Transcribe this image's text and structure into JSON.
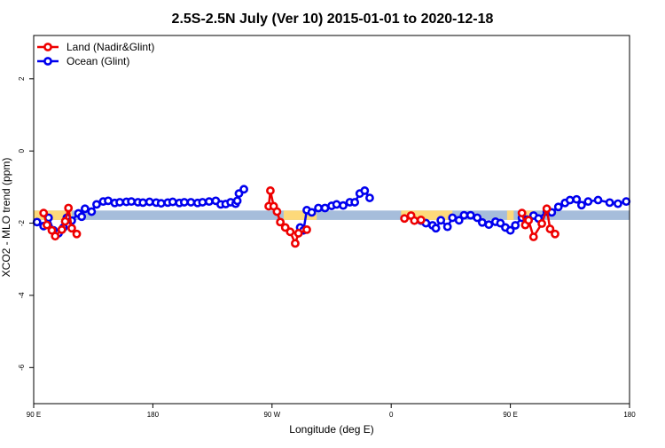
{
  "chart_data": {
    "type": "line",
    "title": "2.5S-2.5N July (Ver 10)   2015-01-01 to 2020-12-18",
    "xlabel": "Longitude (deg E)",
    "ylabel": "XCO2 - MLO trend (ppm)",
    "xlim": [
      90,
      450
    ],
    "ylim": [
      -7,
      3.2
    ],
    "x_ticks": [
      {
        "value": 90,
        "label": "90 E"
      },
      {
        "value": 162,
        "label": "180"
      },
      {
        "value": 234,
        "label": "90 W"
      },
      {
        "value": 306,
        "label": "0"
      },
      {
        "value": 378,
        "label": "90 E"
      },
      {
        "value": 450,
        "label": "180"
      }
    ],
    "y_ticks": [
      {
        "value": 2,
        "label": "2"
      },
      {
        "value": 0,
        "label": "0"
      },
      {
        "value": -2,
        "label": "-2"
      },
      {
        "value": -4,
        "label": "-4"
      },
      {
        "value": -6,
        "label": "-6"
      }
    ],
    "grid": false,
    "legend": "top-left",
    "band": {
      "y_center": -1.78,
      "half_height": 0.13,
      "ocean_color": "#a6bddb",
      "land_color": "#fdd97a",
      "land_ranges": [
        [
          90,
          113
        ],
        [
          241,
          261
        ],
        [
          312,
          343
        ],
        [
          376,
          380
        ],
        [
          386,
          392
        ]
      ]
    },
    "series": [
      {
        "name": "Land (Nadir&Glint)",
        "color": "#ee0000",
        "segments": [
          [
            [
              96,
              -1.72
            ],
            [
              98,
              -2.05
            ],
            [
              101,
              -2.2
            ],
            [
              103,
              -2.36
            ],
            [
              107,
              -2.18
            ],
            [
              109,
              -1.95
            ],
            [
              111,
              -1.58
            ],
            [
              113,
              -2.14
            ],
            [
              116,
              -2.3
            ]
          ],
          [
            [
              232,
              -1.53
            ],
            [
              233,
              -1.1
            ],
            [
              235,
              -1.53
            ],
            [
              237,
              -1.68
            ],
            [
              239,
              -1.97
            ],
            [
              242,
              -2.12
            ],
            [
              245,
              -2.24
            ],
            [
              248,
              -2.56
            ],
            [
              250,
              -2.28
            ],
            [
              255,
              -2.18
            ]
          ],
          [
            [
              314,
              -1.87
            ],
            [
              318,
              -1.79
            ],
            [
              320,
              -1.93
            ],
            [
              324,
              -1.91
            ]
          ],
          [
            [
              385,
              -1.72
            ],
            [
              387,
              -2.05
            ],
            [
              389,
              -1.92
            ],
            [
              392,
              -2.38
            ],
            [
              397,
              -2.01
            ],
            [
              400,
              -1.6
            ],
            [
              402,
              -2.16
            ],
            [
              405,
              -2.3
            ]
          ]
        ]
      },
      {
        "name": "Ocean (Glint)",
        "color": "#0000ee",
        "segments": [
          [
            [
              92,
              -1.97
            ],
            [
              96,
              -2.08
            ],
            [
              99,
              -1.85
            ],
            [
              102,
              -2.2
            ],
            [
              105,
              -2.28
            ],
            [
              108,
              -2.12
            ],
            [
              110,
              -1.85
            ],
            [
              113,
              -1.93
            ],
            [
              117,
              -1.73
            ],
            [
              119,
              -1.82
            ],
            [
              121,
              -1.6
            ],
            [
              125,
              -1.68
            ],
            [
              128,
              -1.48
            ],
            [
              132,
              -1.4
            ],
            [
              135,
              -1.38
            ],
            [
              139,
              -1.44
            ],
            [
              142,
              -1.42
            ],
            [
              146,
              -1.41
            ],
            [
              149,
              -1.4
            ],
            [
              153,
              -1.42
            ],
            [
              156,
              -1.43
            ],
            [
              160,
              -1.41
            ],
            [
              164,
              -1.43
            ],
            [
              167,
              -1.45
            ],
            [
              171,
              -1.43
            ],
            [
              174,
              -1.41
            ],
            [
              178,
              -1.44
            ],
            [
              181,
              -1.42
            ],
            [
              185,
              -1.42
            ],
            [
              189,
              -1.44
            ],
            [
              192,
              -1.42
            ],
            [
              196,
              -1.4
            ],
            [
              200,
              -1.38
            ],
            [
              203,
              -1.48
            ],
            [
              206,
              -1.47
            ],
            [
              209,
              -1.42
            ],
            [
              212,
              -1.46
            ],
            [
              213,
              -1.38
            ],
            [
              214,
              -1.18
            ],
            [
              217,
              -1.06
            ]
          ],
          [
            [
              251,
              -2.12
            ],
            [
              253,
              -2.2
            ],
            [
              255,
              -1.64
            ],
            [
              258,
              -1.7
            ],
            [
              262,
              -1.58
            ],
            [
              266,
              -1.58
            ],
            [
              270,
              -1.52
            ],
            [
              273,
              -1.48
            ],
            [
              277,
              -1.51
            ],
            [
              281,
              -1.42
            ],
            [
              284,
              -1.42
            ],
            [
              287,
              -1.18
            ],
            [
              290,
              -1.1
            ],
            [
              293,
              -1.3
            ]
          ],
          [
            [
              324,
              -1.93
            ],
            [
              327,
              -2.0
            ],
            [
              331,
              -2.06
            ],
            [
              333,
              -2.14
            ],
            [
              336,
              -1.92
            ],
            [
              340,
              -2.1
            ],
            [
              343,
              -1.85
            ],
            [
              347,
              -1.92
            ],
            [
              350,
              -1.78
            ],
            [
              354,
              -1.78
            ],
            [
              358,
              -1.85
            ],
            [
              361,
              -1.98
            ],
            [
              365,
              -2.04
            ],
            [
              369,
              -1.96
            ],
            [
              372,
              -2.0
            ],
            [
              375,
              -2.12
            ],
            [
              378,
              -2.2
            ],
            [
              381,
              -2.06
            ],
            [
              385,
              -1.85
            ],
            [
              388,
              -1.9
            ],
            [
              392,
              -1.79
            ],
            [
              395,
              -1.87
            ],
            [
              400,
              -1.68
            ],
            [
              403,
              -1.7
            ],
            [
              407,
              -1.55
            ],
            [
              411,
              -1.44
            ],
            [
              414,
              -1.36
            ],
            [
              418,
              -1.34
            ],
            [
              421,
              -1.5
            ],
            [
              425,
              -1.4
            ],
            [
              431,
              -1.36
            ],
            [
              438,
              -1.43
            ],
            [
              443,
              -1.46
            ],
            [
              448,
              -1.4
            ]
          ]
        ]
      }
    ]
  }
}
